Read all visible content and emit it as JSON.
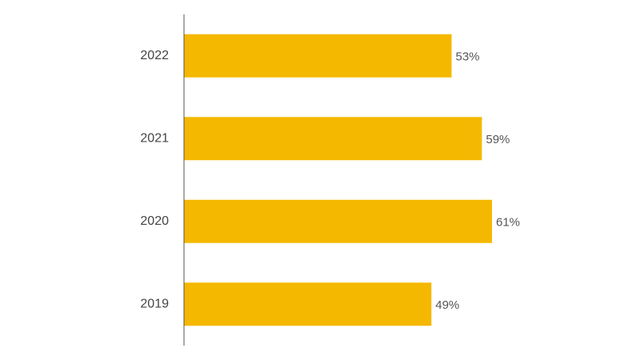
{
  "chart_data": {
    "type": "hbar",
    "categories": [
      "2022",
      "2021",
      "2020",
      "2019"
    ],
    "values": [
      53,
      59,
      61,
      49
    ],
    "value_labels": [
      "53%",
      "59%",
      "61%",
      "49%"
    ],
    "color": "#f5b800"
  }
}
